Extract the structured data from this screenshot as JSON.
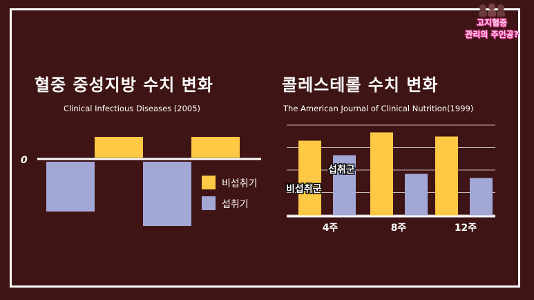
{
  "badge": {
    "line1": "고지혈증",
    "line2": "관리의 주인공?",
    "pink": "#e9359a"
  },
  "colors": {
    "background": "#3f1414",
    "frame": "#ffffff",
    "yellow": "#ffc845",
    "lavender": "#a3a7d6",
    "grid": "#c9b9b9"
  },
  "chart_data": [
    {
      "type": "bar",
      "title": "혈중 중성지방 수치 변화",
      "subtitle": "Clinical Infectious Diseases (2005)",
      "zero_label": "0",
      "series": [
        {
          "name": "비섭취기",
          "color": "#ffc845",
          "values": [
            1,
            1
          ]
        },
        {
          "name": "섭취기",
          "color": "#a3a7d6",
          "values": [
            -2.4,
            -3.1
          ]
        }
      ],
      "ylim": [
        -3.2,
        1.1
      ],
      "legend": "right",
      "grid": false
    },
    {
      "type": "bar",
      "title": "콜레스테롤 수치 변화",
      "subtitle": "The American Journal of Clinical Nutrition(1999)",
      "categories": [
        "4주",
        "8주",
        "12주"
      ],
      "series": [
        {
          "name": "비섭취군",
          "color": "#ffc845",
          "values": [
            3.6,
            4.0,
            3.8
          ]
        },
        {
          "name": "섭취군",
          "color": "#a3a7d6",
          "values": [
            2.9,
            2.0,
            1.8
          ]
        }
      ],
      "ylim": [
        0,
        4.3
      ],
      "grid": true
    }
  ]
}
